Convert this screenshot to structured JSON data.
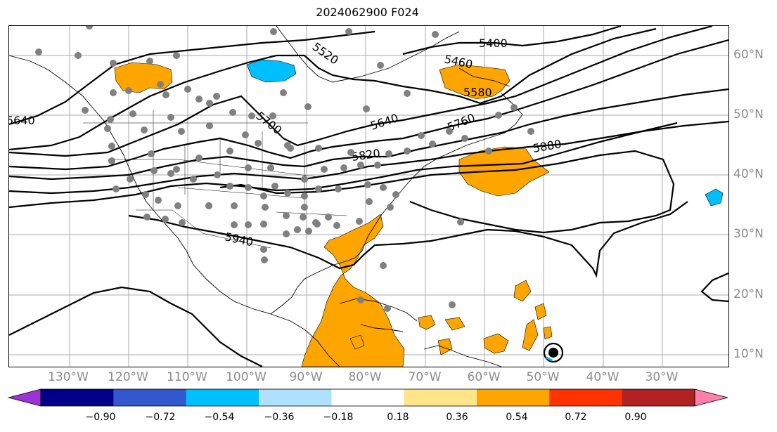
{
  "title": "2024062900 F024",
  "lon_labels": [
    "130°W",
    "120°W",
    "110°W",
    "100°W",
    "90°W",
    "80°W",
    "70°W",
    "60°W",
    "50°W",
    "40°W",
    "30°W"
  ],
  "lat_labels": [
    "60°N",
    "50°N",
    "40°N",
    "30°N",
    "20°N",
    "10°N"
  ],
  "contour_labels": [
    "5400",
    "5520",
    "5460",
    "5580",
    "5640",
    "5700",
    "5760",
    "5820",
    "5880",
    "5940",
    "5640"
  ],
  "colorbar": {
    "ticks": [
      "−0.90",
      "−0.72",
      "−0.54",
      "−0.36",
      "−0.18",
      "0.18",
      "0.36",
      "0.54",
      "0.72",
      "0.90"
    ],
    "colors": [
      "#9a34d6",
      "#000088",
      "#3357cf",
      "#00bfff",
      "#aee0ff",
      "#ffffff",
      "#ffe58a",
      "#ffa500",
      "#ff3300",
      "#b22222",
      "#ff80a8"
    ]
  }
}
